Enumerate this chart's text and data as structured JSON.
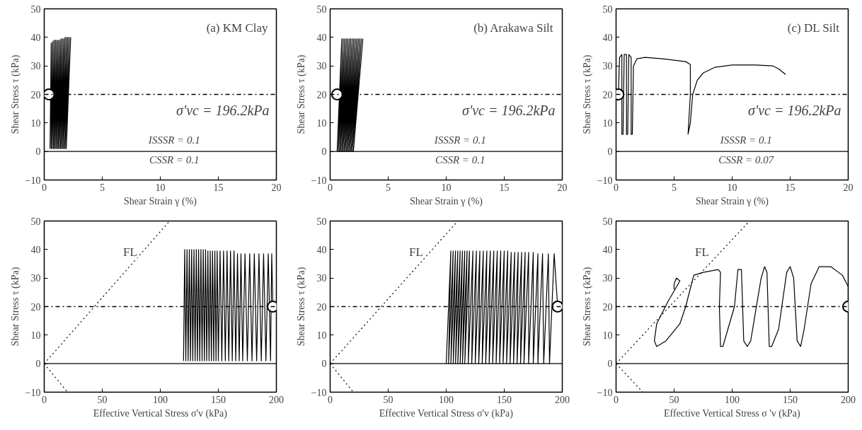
{
  "chart_data": [
    {
      "type": "line",
      "title": "(a) KM Clay",
      "xlabel": "Shear Strain γ (%)",
      "ylabel": "Shear Stress τ (kPa)",
      "xlim": [
        0,
        20
      ],
      "ylim": [
        -10,
        50
      ],
      "xticks": [
        0,
        5,
        10,
        15,
        20
      ],
      "yticks": [
        -10,
        0,
        10,
        20,
        30,
        40,
        50
      ],
      "annotations": [
        "σ'vc = 196.2kPa",
        "ISSSR = 0.1",
        "CSSR = 0.1"
      ],
      "ref_lines": [
        {
          "axis": "y",
          "value": 20,
          "line_style": "dashdot"
        },
        {
          "axis": "y",
          "value": 0,
          "line_style": "solid"
        }
      ],
      "series": [
        {
          "color": "#000000",
          "x": [
            0.5,
            0.6,
            0.6,
            0.72,
            0.7,
            0.84,
            0.8,
            0.96,
            0.9,
            1.08,
            1.0,
            1.2,
            1.1,
            1.32,
            1.2,
            1.44,
            1.3,
            1.56,
            1.4,
            1.68,
            1.5,
            1.8,
            1.6,
            1.92,
            1.7,
            2.04,
            1.8,
            2.16,
            1.9,
            2.28
          ],
          "values": [
            1,
            38,
            1,
            38.5,
            1,
            39,
            1,
            39,
            1,
            39,
            1,
            39,
            1,
            39,
            1,
            39.5,
            1,
            39.5,
            1,
            39.5,
            1,
            40,
            1,
            40,
            1,
            40,
            1,
            40,
            1,
            40
          ]
        },
        {
          "type": "scatter",
          "marker": "circle",
          "color": "#000000",
          "x": [
            0.4
          ],
          "values": [
            20
          ]
        }
      ]
    },
    {
      "type": "line",
      "title": "(b) Arakawa Silt",
      "xlabel": "Shear Strain γ (%)",
      "ylabel": "Shear Stress τ (kPa)",
      "xlim": [
        0,
        20
      ],
      "ylim": [
        -10,
        50
      ],
      "xticks": [
        0,
        5,
        10,
        15,
        20
      ],
      "yticks": [
        -10,
        0,
        10,
        20,
        30,
        40,
        50
      ],
      "annotations": [
        "σ'vc = 196.2kPa",
        "ISSSR = 0.1",
        "CSSR = 0.1"
      ],
      "ref_lines": [
        {
          "axis": "y",
          "value": 20,
          "line_style": "dashdot"
        },
        {
          "axis": "y",
          "value": 0,
          "line_style": "solid"
        }
      ],
      "series": [
        {
          "color": "#000000",
          "x": [
            0.6,
            1.0,
            0.7,
            1.13,
            0.8,
            1.26,
            0.9,
            1.39,
            1.0,
            1.52,
            1.1,
            1.65,
            1.2,
            1.78,
            1.3,
            1.91,
            1.4,
            2.04,
            1.5,
            2.17,
            1.6,
            2.3,
            1.7,
            2.43,
            1.8,
            2.56,
            1.9,
            2.69,
            2.0,
            2.82
          ],
          "values": [
            0,
            39.5,
            0,
            39.5,
            0,
            39.5,
            0,
            39.5,
            0,
            39.5,
            0,
            39.5,
            0,
            39.5,
            0,
            39.5,
            0,
            39.5,
            0,
            39.5,
            0,
            39.5,
            0,
            39.5,
            0,
            39.5,
            0,
            39.5,
            0,
            39.5
          ]
        },
        {
          "type": "scatter",
          "marker": "circle",
          "color": "#000000",
          "x": [
            0.6
          ],
          "values": [
            20
          ]
        }
      ]
    },
    {
      "type": "line",
      "title": "(c) DL Silt",
      "xlabel": "Shear Strain γ (%)",
      "ylabel": "Shear Stress τ (kPa)",
      "xlim": [
        0,
        20
      ],
      "ylim": [
        -10,
        50
      ],
      "xticks": [
        0,
        5,
        10,
        15,
        20
      ],
      "yticks": [
        -10,
        0,
        10,
        20,
        30,
        40,
        50
      ],
      "annotations": [
        "σ'vc = 196.2kPa",
        "ISSSR = 0.1",
        "CSSR = 0.07"
      ],
      "ref_lines": [
        {
          "axis": "y",
          "value": 20,
          "line_style": "dashdot"
        },
        {
          "axis": "y",
          "value": 0,
          "line_style": "solid"
        }
      ],
      "series": [
        {
          "color": "#000000",
          "x": [
            0.2,
            0.3,
            0.5,
            0.5,
            0.6,
            0.7,
            0.9,
            0.9,
            1.0,
            1.1,
            1.3,
            1.3,
            1.4,
            1.5,
            1.8,
            2.5,
            4,
            6,
            6.4,
            6.4,
            6.2,
            6.4,
            6.6,
            7,
            7.5,
            8.5,
            10,
            12,
            13.5,
            14,
            14.6
          ],
          "values": [
            20,
            33,
            34,
            6,
            6,
            34,
            34,
            6,
            6,
            34,
            33,
            6,
            6,
            30,
            32.5,
            33,
            32.5,
            31.5,
            30.5,
            20,
            6,
            10,
            20,
            25,
            27.5,
            29.5,
            30.3,
            30.3,
            30,
            29,
            27
          ]
        },
        {
          "type": "scatter",
          "marker": "circle",
          "color": "#000000",
          "x": [
            0.2
          ],
          "values": [
            20
          ]
        }
      ]
    },
    {
      "type": "line",
      "xlabel": "Effective Vertical Stress σ'v (kPa)",
      "ylabel": "Shear Stress τ (kPa)",
      "xlim": [
        0,
        200
      ],
      "ylim": [
        -10,
        50
      ],
      "xticks": [
        0,
        50,
        100,
        150,
        200
      ],
      "yticks": [
        -10,
        0,
        10,
        20,
        30,
        40,
        50
      ],
      "annotations": [
        "FL"
      ],
      "ref_lines": [
        {
          "axis": "y",
          "value": 20,
          "line_style": "dashdot"
        },
        {
          "axis": "y",
          "value": 0,
          "line_style": "solid"
        }
      ],
      "series": [
        {
          "color": "#000000",
          "x": [
            120,
            121,
            122,
            123,
            124,
            125,
            126,
            127,
            128,
            129,
            130,
            131,
            132,
            133,
            134,
            135,
            136,
            137,
            138,
            139,
            140,
            141,
            142,
            143,
            144,
            145,
            146,
            147,
            148,
            149,
            150,
            151.5,
            153,
            154.5,
            156,
            157.5,
            159,
            160.5,
            162,
            163.5,
            165,
            166.5,
            168,
            169.5,
            171,
            173,
            175,
            177,
            179,
            181,
            183,
            185,
            187,
            189,
            191,
            193,
            195,
            196,
            197
          ],
          "values": [
            1,
            40,
            1,
            40,
            1,
            40,
            1,
            40,
            1,
            40,
            1,
            40,
            1,
            40,
            1,
            40,
            1,
            40,
            1,
            40,
            1,
            39.5,
            1,
            39.5,
            1,
            39.5,
            1,
            39.5,
            1,
            39.5,
            1,
            39.5,
            1,
            39.5,
            1,
            39.5,
            1,
            39.5,
            1,
            39.5,
            1,
            38.5,
            1,
            38.5,
            1,
            38.5,
            1,
            38.5,
            1,
            38.5,
            1,
            38.5,
            1,
            38.5,
            1,
            38.5,
            1,
            38.5,
            20
          ]
        },
        {
          "type": "line",
          "line_style": "dotted",
          "color": "#000000",
          "x": [
            0,
            108
          ],
          "values": [
            0,
            50
          ]
        },
        {
          "type": "line",
          "line_style": "dotted",
          "color": "#000000",
          "x": [
            0,
            20
          ],
          "values": [
            0,
            -10
          ]
        },
        {
          "type": "scatter",
          "marker": "circle",
          "color": "#000000",
          "x": [
            197
          ],
          "values": [
            20
          ]
        }
      ]
    },
    {
      "type": "line",
      "xlabel": "Effective Vertical Stress σ'v (kPa)",
      "ylabel": "Shear Stress τ (kPa)",
      "xlim": [
        0,
        200
      ],
      "ylim": [
        -10,
        50
      ],
      "xticks": [
        0,
        50,
        100,
        150,
        200
      ],
      "yticks": [
        -10,
        0,
        10,
        20,
        30,
        40,
        50
      ],
      "annotations": [
        "FL"
      ],
      "ref_lines": [
        {
          "axis": "y",
          "value": 20,
          "line_style": "dashdot"
        },
        {
          "axis": "y",
          "value": 0,
          "line_style": "solid"
        }
      ],
      "series": [
        {
          "color": "#000000",
          "x": [
            100,
            104,
            102,
            106,
            104,
            108,
            106,
            110,
            108,
            112,
            110,
            114,
            112,
            116,
            114,
            118,
            116,
            120,
            119,
            123,
            122,
            126,
            125,
            129,
            128,
            132,
            131,
            135,
            134,
            138,
            137,
            141,
            140,
            144,
            143,
            147,
            146,
            150,
            149,
            153,
            152,
            156,
            155,
            159,
            158,
            162,
            161,
            165,
            164,
            168,
            167,
            171,
            171,
            175,
            175,
            179,
            179,
            183,
            184,
            188,
            189,
            193,
            196
          ],
          "values": [
            0,
            39.5,
            0,
            39.5,
            0,
            39.5,
            0,
            39.5,
            0,
            39.5,
            0,
            39.5,
            0,
            39.5,
            0,
            39.5,
            0,
            39.5,
            0,
            39.5,
            0,
            39.5,
            0,
            39.5,
            0,
            39.5,
            0,
            39.5,
            0,
            39.5,
            0,
            39.5,
            0,
            39.5,
            0,
            39.5,
            0,
            39.5,
            0,
            39.5,
            0,
            39,
            0,
            39,
            0,
            39,
            0,
            39,
            0,
            39,
            0,
            39,
            0,
            39,
            0,
            38.5,
            0,
            38.5,
            0,
            38.5,
            0,
            38.5,
            20
          ]
        },
        {
          "type": "line",
          "line_style": "dotted",
          "color": "#000000",
          "x": [
            0,
            110
          ],
          "values": [
            0,
            50
          ]
        },
        {
          "type": "line",
          "line_style": "dotted",
          "color": "#000000",
          "x": [
            0,
            20
          ],
          "values": [
            0,
            -10
          ]
        },
        {
          "type": "scatter",
          "marker": "circle",
          "color": "#000000",
          "x": [
            196
          ],
          "values": [
            20
          ]
        }
      ]
    },
    {
      "type": "line",
      "xlabel": "Effective Vertical Stress σ 'v (kPa)",
      "ylabel": "Shear Stress τ (kPa)",
      "xlim": [
        0,
        200
      ],
      "ylim": [
        -10,
        50
      ],
      "xticks": [
        0,
        50,
        100,
        150,
        200
      ],
      "yticks": [
        -10,
        0,
        10,
        20,
        30,
        40,
        50
      ],
      "annotations": [
        "FL"
      ],
      "ref_lines": [
        {
          "axis": "y",
          "value": 20,
          "line_style": "dashdot"
        },
        {
          "axis": "y",
          "value": 0,
          "line_style": "solid"
        }
      ],
      "series": [
        {
          "color": "#000000",
          "x": [
            200,
            200,
            195,
            185,
            175,
            168,
            162,
            159,
            156,
            153,
            150,
            147,
            140,
            134,
            132,
            130,
            128,
            125,
            116,
            113,
            110,
            108,
            105,
            102,
            92,
            90,
            89,
            90,
            88,
            75,
            67,
            65,
            60,
            55,
            43,
            35,
            33,
            35,
            45,
            55,
            52,
            50,
            50
          ],
          "values": [
            20,
            27,
            31,
            34,
            34,
            28,
            12,
            6,
            8,
            30,
            34,
            32,
            12,
            6,
            6,
            32,
            34,
            30,
            8,
            6,
            8,
            33,
            33,
            20,
            6,
            6,
            20,
            32,
            33,
            32,
            31,
            28,
            20,
            14,
            8,
            6,
            8,
            14,
            22,
            29,
            30,
            28,
            26
          ]
        },
        {
          "type": "line",
          "line_style": "dotted",
          "color": "#000000",
          "x": [
            0,
            115
          ],
          "values": [
            0,
            50
          ]
        },
        {
          "type": "line",
          "line_style": "dotted",
          "color": "#000000",
          "x": [
            0,
            23
          ],
          "values": [
            0,
            -10
          ]
        },
        {
          "type": "scatter",
          "marker": "circle",
          "color": "#000000",
          "x": [
            200
          ],
          "values": [
            20
          ]
        }
      ]
    }
  ]
}
